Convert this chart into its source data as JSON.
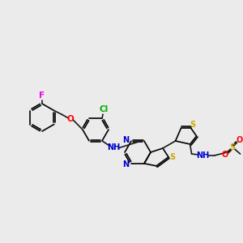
{
  "background_color": "#ebebeb",
  "bond_color": "#1a1a1a",
  "atom_colors": {
    "N": "#0000cc",
    "S": "#ccaa00",
    "O": "#ff0000",
    "F": "#ee00ee",
    "Cl": "#00aa00",
    "NH": "#0000cc"
  },
  "figsize": [
    3.0,
    3.0
  ],
  "dpi": 100,
  "lw": 1.2,
  "fs": 6.5
}
